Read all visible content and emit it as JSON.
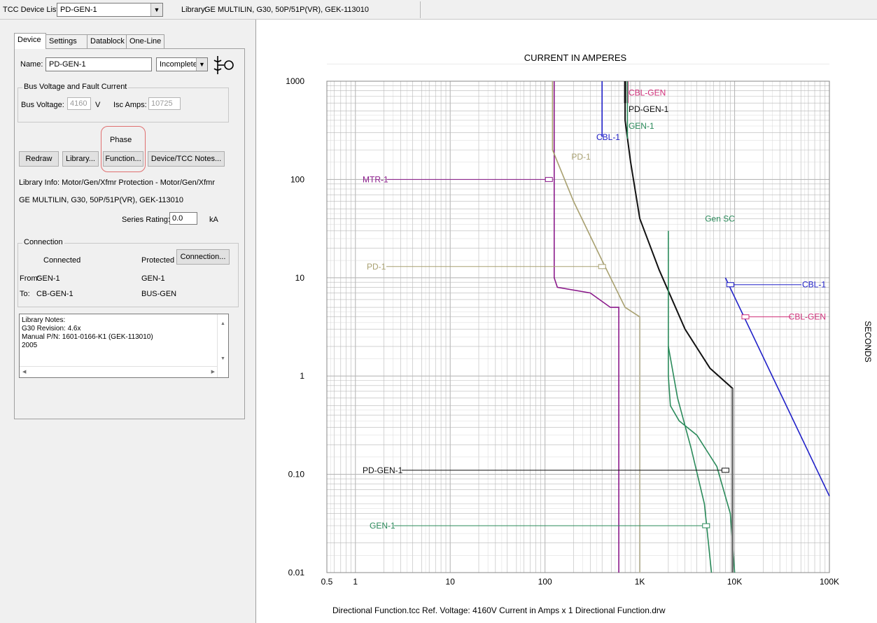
{
  "toolbar": {
    "device_list_label": "TCC Device List",
    "device_list_value": "PD-GEN-1",
    "library_label": "Library:",
    "library_value": "GE MULTILIN, G30, 50P/51P(VR), GEK-113010"
  },
  "tabs": [
    "Device",
    "Settings",
    "Datablock",
    "One-Line"
  ],
  "device": {
    "name_label": "Name:",
    "name_value": "PD-GEN-1",
    "status_value": "Incomplete",
    "bus_group_label": "Bus Voltage and Fault Current",
    "bus_voltage_label": "Bus Voltage:",
    "bus_voltage_value": "4160",
    "bus_voltage_unit": "V",
    "isc_label": "Isc Amps:",
    "isc_value": "10725",
    "phase_label": "Phase",
    "buttons": {
      "redraw": "Redraw",
      "library": "Library...",
      "function": "Function...",
      "notes": "Device/TCC Notes..."
    },
    "library_info_line1": "Library Info:   Motor/Gen/Xfmr Protection - Motor/Gen/Xfmr",
    "library_info_line2": "GE MULTILIN, G30, 50P/51P(VR), GEK-113010",
    "series_rating_label": "Series Rating:",
    "series_rating_value": "0.0",
    "series_rating_unit": "kA"
  },
  "connection": {
    "group_label": "Connection",
    "connected_header": "Connected",
    "protected_header": "Protected",
    "button": "Connection...",
    "from_label": "From:",
    "from_connected": "GEN-1",
    "from_protected": "GEN-1",
    "to_label": "To:",
    "to_connected": "CB-GEN-1",
    "to_protected": "BUS-GEN"
  },
  "library_notes": [
    "Library Notes:",
    "G30 Revision: 4.6x",
    "Manual P/N: 1601-0166-K1 (GEK-113010)",
    "2005"
  ],
  "footer": "Directional Function.tcc   Ref. Voltage: 4160V   Current in Amps x 1   Directional Function.drw",
  "colors": {
    "purple": "#8b1a8b",
    "tan": "#a8a070",
    "blue": "#2020c8",
    "pink": "#d0307a",
    "green": "#2a8a5a",
    "black": "#111111",
    "grid": "#b8b8b8"
  },
  "chart_data": {
    "type": "line",
    "title": "CURRENT IN AMPERES",
    "ylabel": "SECONDS",
    "x_scale": "log",
    "y_scale": "log",
    "xlim": [
      0.5,
      100000
    ],
    "ylim": [
      0.01,
      1000
    ],
    "x_ticks": [
      "0.5",
      "1",
      "10",
      "100",
      "1K",
      "10K",
      "100K"
    ],
    "y_ticks": [
      "1000",
      "100",
      "10",
      "1",
      "0.10",
      "0.01"
    ],
    "x_tick_values": [
      0.5,
      1,
      10,
      100,
      1000,
      10000,
      100000
    ],
    "y_tick_values": [
      1000,
      100,
      10,
      1,
      0.1,
      0.01
    ],
    "series": [
      {
        "name": "MTR-1",
        "color": "purple",
        "x": [
          125,
          125,
          135,
          300,
          490,
          600,
          600
        ],
        "y": [
          1000,
          10,
          8,
          7,
          5,
          5,
          0.01
        ]
      },
      {
        "name": "PD-1",
        "color": "tan",
        "x": [
          120,
          120,
          200,
          400,
          700,
          1000,
          1000
        ],
        "y": [
          1000,
          200,
          60,
          15,
          5,
          4,
          0.01
        ]
      },
      {
        "name": "CBL-1",
        "color": "blue",
        "x": [
          400,
          400
        ],
        "y": [
          1000,
          270
        ]
      },
      {
        "name": "CBL-1",
        "color": "blue",
        "x": [
          8000,
          100000
        ],
        "y": [
          10,
          0.06
        ]
      },
      {
        "name": "CBL-GEN",
        "color": "pink",
        "x": [
          750,
          750
        ],
        "y": [
          1000,
          600
        ]
      },
      {
        "name": "PD-GEN-1",
        "color": "black",
        "x": [
          700,
          700,
          800,
          1000,
          1600,
          3000,
          5500,
          9500,
          9500
        ],
        "y": [
          1000,
          400,
          150,
          40,
          12,
          3,
          1.2,
          0.75,
          0.01
        ]
      },
      {
        "name": "GEN-1",
        "color": "green",
        "x": [
          740,
          740
        ],
        "y": [
          1000,
          260
        ]
      },
      {
        "name": "Gen SC",
        "color": "green",
        "x": [
          2000,
          2000,
          2100,
          2600,
          4000,
          6500,
          9000,
          10000
        ],
        "y": [
          30,
          1,
          0.5,
          0.35,
          0.25,
          0.12,
          0.04,
          0.01
        ]
      },
      {
        "name": "GEN-1 low",
        "color": "green",
        "x": [
          2000,
          2500,
          3500,
          4800,
          5700
        ],
        "y": [
          2,
          0.6,
          0.18,
          0.05,
          0.01
        ]
      }
    ],
    "labels": [
      {
        "text": "CBL-GEN",
        "color": "pink"
      },
      {
        "text": "PD-GEN-1",
        "color": "black"
      },
      {
        "text": "GEN-1",
        "color": "green"
      },
      {
        "text": "CBL-1",
        "color": "blue"
      },
      {
        "text": "PD-1",
        "color": "tan"
      },
      {
        "text": "MTR-1",
        "color": "purple"
      },
      {
        "text": "Gen SC",
        "color": "green"
      },
      {
        "text": "PD-1",
        "color": "tan"
      },
      {
        "text": "CBL-1",
        "color": "blue"
      },
      {
        "text": "CBL-GEN",
        "color": "pink"
      },
      {
        "text": "PD-GEN-1",
        "color": "black"
      },
      {
        "text": "GEN-1",
        "color": "green"
      }
    ],
    "grid": true
  }
}
